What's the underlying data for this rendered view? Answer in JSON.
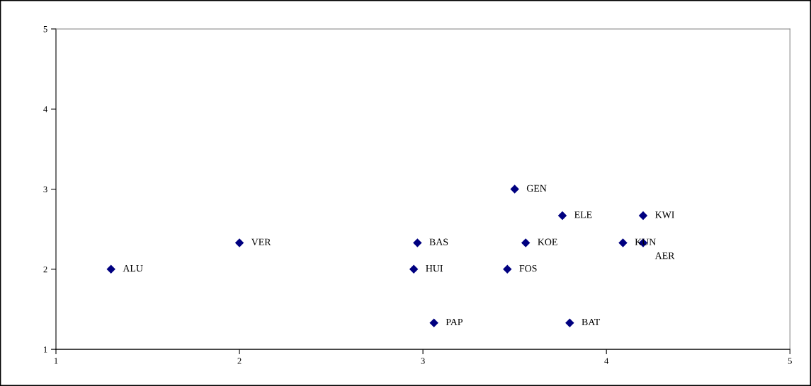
{
  "chart_data": {
    "type": "scatter",
    "marker": "diamond",
    "grid": false,
    "xlim": [
      1,
      5
    ],
    "ylim": [
      1,
      5
    ],
    "xticks": [
      1,
      2,
      3,
      4,
      5
    ],
    "yticks": [
      1,
      2,
      3,
      4,
      5
    ],
    "series": [
      {
        "color": "#000080",
        "x": [
          1.3,
          2,
          2.97,
          2.95,
          3.06,
          3.5,
          3.76,
          3.56,
          3.46,
          3.8,
          4.2,
          4.09,
          4.2
        ],
        "values": [
          2,
          2.33,
          2.33,
          2,
          1.33,
          3,
          2.67,
          2.33,
          2,
          1.33,
          2.67,
          2.33,
          2.33
        ]
      }
    ],
    "annotations": [
      {
        "text": "ALU",
        "x": 1.3,
        "y": 2
      },
      {
        "text": "VER",
        "x": 2,
        "y": 2.33
      },
      {
        "text": "BAS",
        "x": 2.97,
        "y": 2.33
      },
      {
        "text": "HUI",
        "x": 2.95,
        "y": 2
      },
      {
        "text": "PAP",
        "x": 3.06,
        "y": 1.33
      },
      {
        "text": "GEN",
        "x": 3.5,
        "y": 3
      },
      {
        "text": "ELE",
        "x": 3.76,
        "y": 2.67
      },
      {
        "text": "KOE",
        "x": 3.56,
        "y": 2.33
      },
      {
        "text": "FOS",
        "x": 3.46,
        "y": 2
      },
      {
        "text": "BAT",
        "x": 3.8,
        "y": 1.33
      },
      {
        "text": "KWI",
        "x": 4.2,
        "y": 2.67
      },
      {
        "text": "KUN",
        "x": 4.09,
        "y": 2.33
      },
      {
        "text": "AER",
        "x": 4.2,
        "y": 2.33
      }
    ]
  }
}
